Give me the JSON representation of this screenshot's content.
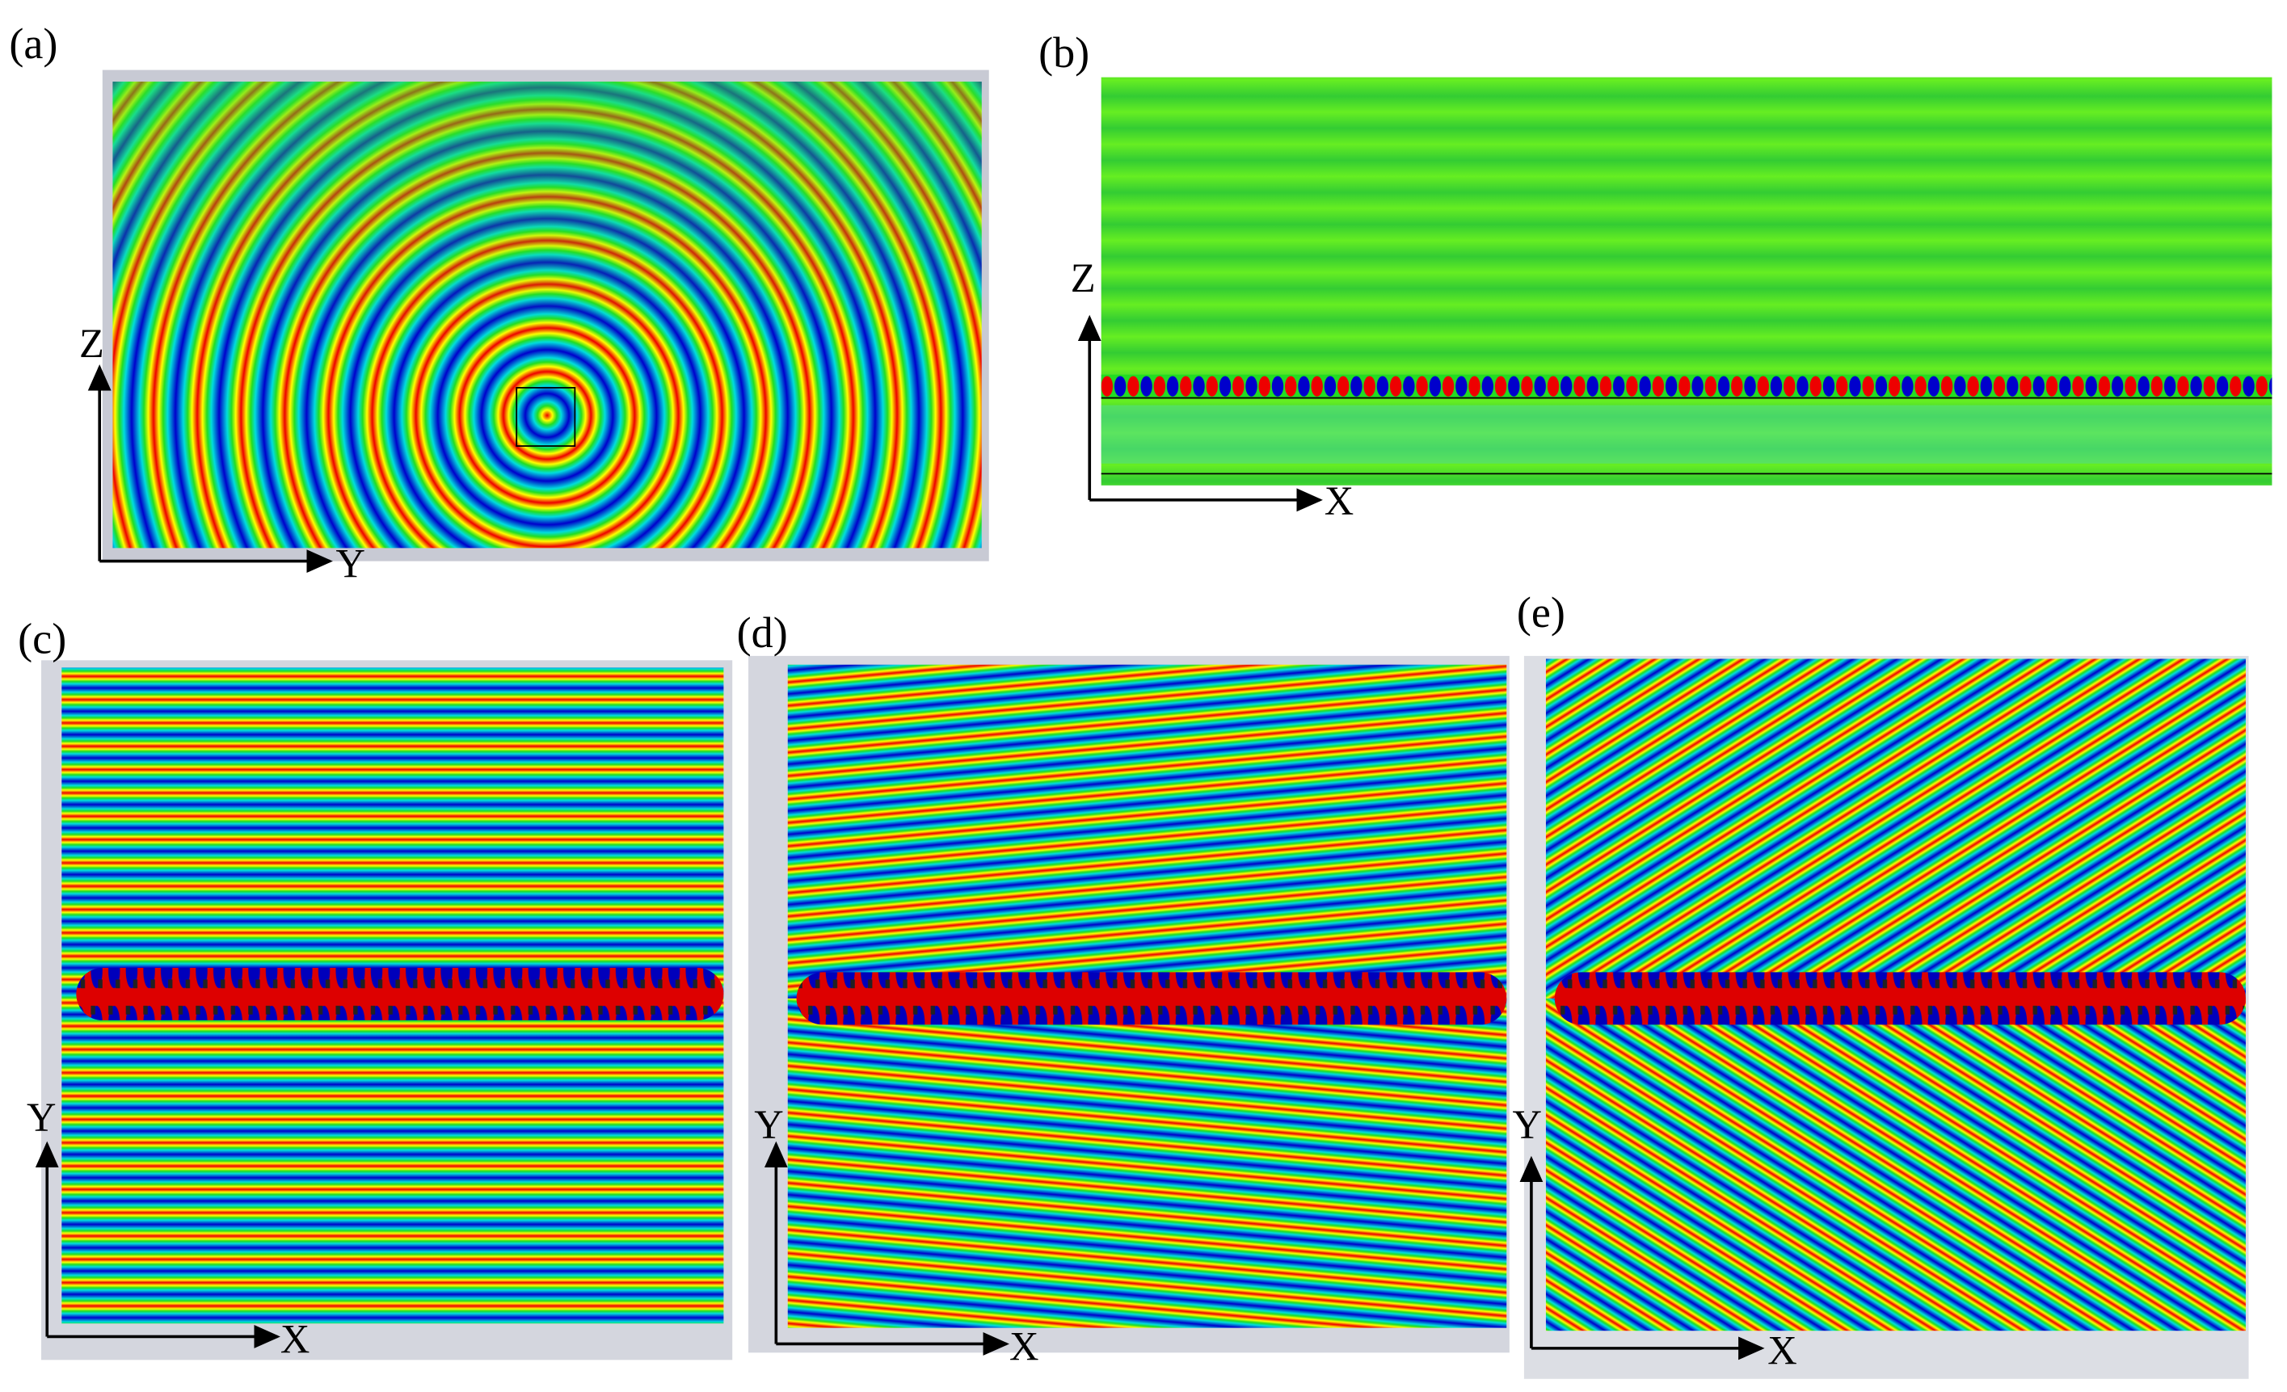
{
  "panels": [
    {
      "label": "(a)",
      "vertical_axis": "Z",
      "horizontal_axis": "Y"
    },
    {
      "label": "(b)",
      "vertical_axis": "Z",
      "horizontal_axis": "X"
    },
    {
      "label": "(c)",
      "vertical_axis": "Y",
      "horizontal_axis": "X"
    },
    {
      "label": "(d)",
      "vertical_axis": "Y",
      "horizontal_axis": "X"
    },
    {
      "label": "(e)",
      "vertical_axis": "Y",
      "horizontal_axis": "X"
    }
  ]
}
